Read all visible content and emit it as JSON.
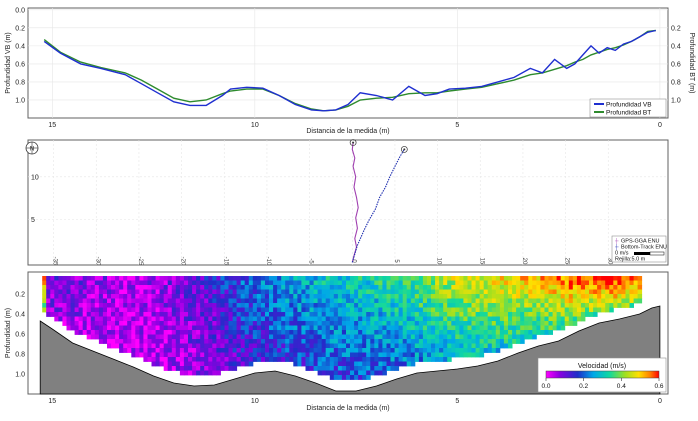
{
  "colors": {
    "vb": "#1f2fd0",
    "bt": "#2e8b2e",
    "gps": "#a040b0",
    "btrack": "#2030b0",
    "terrain": "#808080",
    "grid": "#e6e6e6",
    "axis": "#404040"
  },
  "chart_data": [
    {
      "type": "line",
      "xlabel": "Distancia de la medida (m)",
      "ylabel": "Profundidad VB (m)",
      "ylabel_right": "Profundidad BT (m)",
      "xlim": [
        15.6,
        -0.2
      ],
      "ylim": [
        -0.02,
        1.2
      ],
      "x_ticks": [
        "15",
        "10",
        "5",
        "0"
      ],
      "y_ticks": [
        "0.0",
        "0.2",
        "0.4",
        "0.6",
        "0.8",
        "1.0"
      ],
      "y_ticks_right": [
        "0.2",
        "0.4",
        "0.6",
        "0.8",
        "1.0"
      ],
      "legend_position": "bottom-right",
      "series": [
        {
          "name": "Profundidad VB",
          "x": [
            15.2,
            14.8,
            14.3,
            13.8,
            13.2,
            12.8,
            12.4,
            12.0,
            11.6,
            11.2,
            10.8,
            10.6,
            10.2,
            9.8,
            9.4,
            9.0,
            8.6,
            8.3,
            8.0,
            7.7,
            7.4,
            7.0,
            6.6,
            6.2,
            5.8,
            5.5,
            5.2,
            4.8,
            4.4,
            4.0,
            3.6,
            3.2,
            2.9,
            2.6,
            2.3,
            2.1,
            1.9,
            1.7,
            1.5,
            1.3,
            1.1,
            0.9,
            0.7,
            0.5,
            0.3,
            0.1
          ],
          "y": [
            0.35,
            0.48,
            0.6,
            0.65,
            0.72,
            0.82,
            0.92,
            1.02,
            1.06,
            1.06,
            0.95,
            0.88,
            0.86,
            0.87,
            0.95,
            1.05,
            1.11,
            1.12,
            1.11,
            1.05,
            0.92,
            0.95,
            1.0,
            0.85,
            0.95,
            0.93,
            0.88,
            0.87,
            0.85,
            0.8,
            0.75,
            0.65,
            0.7,
            0.55,
            0.65,
            0.6,
            0.5,
            0.4,
            0.48,
            0.42,
            0.45,
            0.38,
            0.35,
            0.3,
            0.25,
            0.23
          ]
        },
        {
          "name": "Profundidad BT",
          "x": [
            15.2,
            14.8,
            14.3,
            13.8,
            13.2,
            12.8,
            12.4,
            12.0,
            11.6,
            11.2,
            10.8,
            10.6,
            10.2,
            9.8,
            9.4,
            9.0,
            8.6,
            8.3,
            8.0,
            7.7,
            7.4,
            7.0,
            6.6,
            6.2,
            5.8,
            5.5,
            5.2,
            4.8,
            4.4,
            4.0,
            3.6,
            3.2,
            2.9,
            2.6,
            2.3,
            2.1,
            1.9,
            1.7,
            1.5,
            1.3,
            1.1,
            0.9,
            0.7,
            0.5,
            0.3,
            0.1
          ],
          "y": [
            0.33,
            0.47,
            0.58,
            0.64,
            0.7,
            0.78,
            0.88,
            0.98,
            1.02,
            1.0,
            0.93,
            0.9,
            0.88,
            0.88,
            0.95,
            1.04,
            1.1,
            1.12,
            1.11,
            1.07,
            1.0,
            0.98,
            0.97,
            0.93,
            0.92,
            0.92,
            0.9,
            0.88,
            0.86,
            0.82,
            0.78,
            0.72,
            0.7,
            0.66,
            0.62,
            0.58,
            0.55,
            0.5,
            0.47,
            0.44,
            0.42,
            0.39,
            0.35,
            0.3,
            0.24,
            0.23
          ]
        }
      ]
    },
    {
      "type": "line",
      "xlim": [
        -38,
        37
      ],
      "ylim": [
        -0.3,
        14.3
      ],
      "x_ticks": [
        "-35",
        "-30",
        "-25",
        "-20",
        "-15",
        "-10",
        "-5",
        "0",
        "5",
        "10",
        "15",
        "20",
        "25",
        "30"
      ],
      "y_ticks": [
        "5",
        "10"
      ],
      "legend_position": "bottom-right",
      "scale_label": "0 m/s",
      "grid_label": "Rejilla:5.0 m",
      "series": [
        {
          "name": "GPS-GGA ENU",
          "x": [
            0.0,
            0.2,
            0.5,
            0.3,
            0.6,
            0.4,
            0.7,
            0.5,
            0.2,
            0.4,
            0.1,
            0.3,
            0.0,
            0.1
          ],
          "y": [
            0.0,
            0.8,
            1.8,
            2.8,
            4.0,
            5.2,
            6.4,
            7.6,
            8.8,
            10.0,
            11.2,
            12.2,
            13.2,
            14.0
          ]
        },
        {
          "name": "Bottom-Track ENU",
          "x": [
            0.0,
            0.6,
            1.4,
            2.0,
            2.7,
            3.2,
            3.9,
            4.4,
            5.0,
            5.6,
            6.1
          ],
          "y": [
            0.0,
            2.0,
            3.8,
            5.0,
            6.2,
            7.6,
            8.8,
            10.0,
            11.2,
            12.4,
            13.2
          ]
        }
      ]
    },
    {
      "type": "heatmap",
      "xlabel": "Distancia de la medida (m)",
      "ylabel": "Profundidad (m)",
      "xlim": [
        15.6,
        -0.2
      ],
      "ylim": [
        -0.02,
        1.2
      ],
      "x_ticks": [
        "15",
        "10",
        "5",
        "0"
      ],
      "y_ticks": [
        "0.2",
        "0.4",
        "0.6",
        "0.8",
        "1.0"
      ],
      "colorbar_label": "Velocidad (m/s)",
      "colorbar_ticks": [
        "0.0",
        "0.2",
        "0.4",
        "0.6"
      ],
      "colorbar_range": [
        0.0,
        0.6
      ],
      "bed_depth": {
        "x": [
          15.3,
          15.0,
          14.5,
          14.0,
          13.5,
          13.0,
          12.5,
          12.0,
          11.5,
          11.0,
          10.5,
          10.0,
          9.5,
          9.0,
          8.5,
          8.0,
          7.5,
          7.0,
          6.5,
          6.0,
          5.5,
          5.0,
          4.5,
          4.0,
          3.5,
          3.0,
          2.5,
          2.0,
          1.5,
          1.0,
          0.5,
          0.2,
          0.0
        ],
        "y": [
          0.4,
          0.48,
          0.62,
          0.7,
          0.78,
          0.86,
          0.95,
          1.02,
          1.05,
          1.04,
          0.98,
          0.92,
          0.9,
          0.95,
          1.02,
          1.1,
          1.1,
          1.05,
          0.98,
          0.92,
          0.9,
          0.88,
          0.85,
          0.8,
          0.72,
          0.65,
          0.6,
          0.5,
          0.42,
          0.38,
          0.33,
          0.27,
          0.25
        ]
      },
      "profile_centers": [
        0.2,
        1.2,
        2.2,
        3.2,
        4.2,
        5.2,
        6.2,
        7.2,
        8.2,
        9.2,
        10.2,
        11.2,
        12.2,
        13.2,
        14.2,
        15.2
      ],
      "profile_velocity": [
        0.55,
        0.58,
        0.55,
        0.48,
        0.45,
        0.42,
        0.35,
        0.3,
        0.28,
        0.25,
        0.2,
        0.12,
        0.08,
        0.05,
        0.08,
        0.1
      ]
    }
  ]
}
